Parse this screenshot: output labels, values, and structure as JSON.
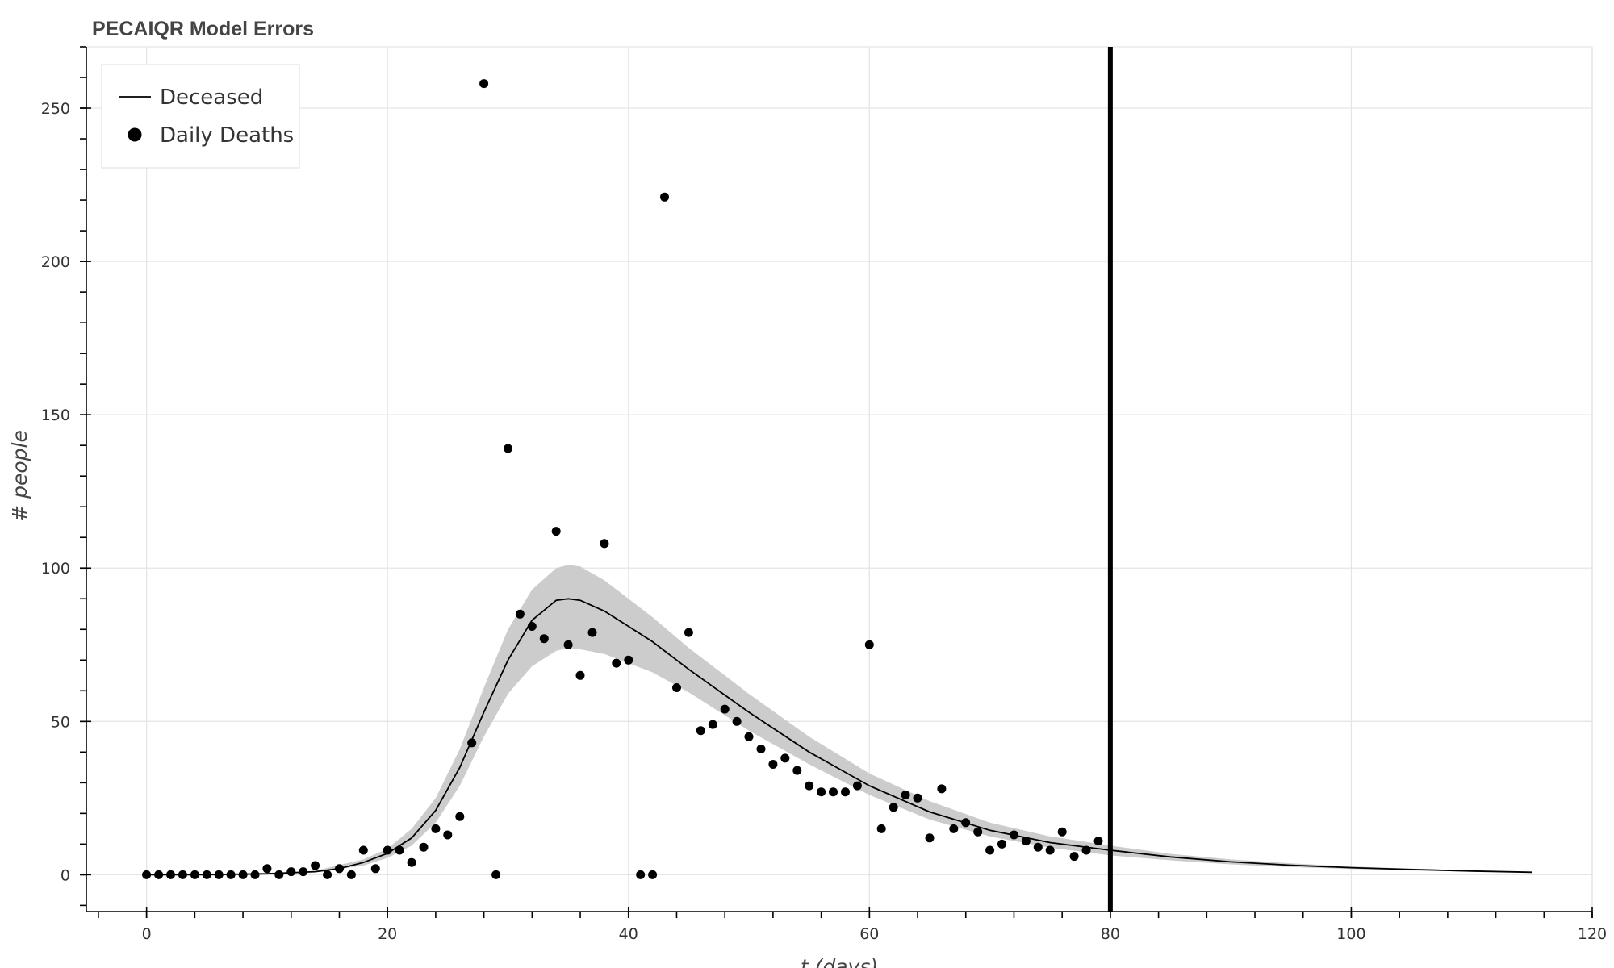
{
  "chart_data": {
    "type": "line",
    "title": "PECAIQR Model Errors",
    "xlabel": "t (days)",
    "ylabel": "# people",
    "xlim": [
      -5,
      120
    ],
    "ylim": [
      -12,
      270
    ],
    "x_ticks": [
      0,
      20,
      40,
      60,
      80,
      100,
      120
    ],
    "y_ticks": [
      0,
      50,
      100,
      150,
      200,
      250
    ],
    "grid": true,
    "legend": {
      "placement": "top-left",
      "entries": [
        {
          "label": "Deceased",
          "marker": "line"
        },
        {
          "label": "Daily Deaths",
          "marker": "circle"
        }
      ]
    },
    "vertical_line": {
      "x": 80,
      "color": "#000000"
    },
    "band_color": "#cccccc",
    "line_color": "#000000",
    "series": [
      {
        "name": "Deceased",
        "kind": "line",
        "x": [
          0,
          5,
          10,
          14,
          16,
          18,
          20,
          22,
          24,
          26,
          27,
          28,
          30,
          32,
          34,
          35,
          36,
          38,
          40,
          42,
          45,
          50,
          55,
          60,
          65,
          70,
          75,
          80,
          85,
          90,
          95,
          100,
          105,
          110,
          115
        ],
        "y": [
          0,
          0,
          0.3,
          1,
          2,
          4,
          7,
          12,
          21,
          35,
          44,
          53,
          70,
          83,
          89.5,
          90,
          89.5,
          86,
          81,
          76,
          67,
          53,
          40,
          29,
          20.5,
          14.5,
          10.5,
          8,
          5.8,
          4.2,
          3.1,
          2.3,
          1.7,
          1.2,
          0.8
        ]
      },
      {
        "name": "Deceased band",
        "kind": "band",
        "x": [
          0,
          10,
          14,
          18,
          20,
          22,
          24,
          26,
          28,
          30,
          32,
          34,
          35,
          36,
          38,
          40,
          42,
          45,
          50,
          55,
          60,
          65,
          70,
          75,
          80,
          85,
          90,
          95,
          100,
          105,
          110,
          115
        ],
        "upper": [
          0,
          0.4,
          1.3,
          5,
          8.5,
          15,
          25,
          41,
          61,
          80,
          93,
          100,
          101,
          100.5,
          96,
          90,
          84,
          74,
          59,
          45,
          33,
          24,
          17,
          12.5,
          9.5,
          6.8,
          5,
          3.7,
          2.7,
          2,
          1.4,
          0.9
        ],
        "lower": [
          0,
          0.2,
          0.8,
          3,
          5.5,
          9.5,
          17,
          29,
          45,
          59,
          68,
          73,
          74,
          73.5,
          72,
          69,
          66,
          59.5,
          47,
          36,
          26,
          18,
          12.5,
          8.8,
          6.3,
          4.7,
          3.4,
          2.5,
          1.9,
          1.4,
          1,
          0.7
        ]
      },
      {
        "name": "Daily Deaths",
        "kind": "scatter",
        "x": [
          0,
          1,
          2,
          3,
          4,
          5,
          6,
          7,
          8,
          9,
          10,
          11,
          12,
          13,
          14,
          15,
          16,
          17,
          18,
          19,
          20,
          21,
          22,
          23,
          24,
          25,
          26,
          27,
          28,
          29,
          30,
          31,
          32,
          33,
          34,
          35,
          36,
          37,
          38,
          39,
          40,
          41,
          42,
          43,
          44,
          45,
          46,
          47,
          48,
          49,
          50,
          51,
          52,
          53,
          54,
          55,
          56,
          57,
          58,
          59,
          60,
          61,
          62,
          63,
          64,
          65,
          66,
          67,
          68,
          69,
          70,
          71,
          72,
          73,
          74,
          75,
          76,
          77,
          78,
          79
        ],
        "y": [
          0,
          0,
          0,
          0,
          0,
          0,
          0,
          0,
          0,
          0,
          2,
          0,
          1,
          1,
          3,
          0,
          2,
          0,
          8,
          2,
          8,
          8,
          4,
          9,
          15,
          13,
          19,
          43,
          258,
          0,
          139,
          85,
          81,
          77,
          112,
          75,
          65,
          79,
          108,
          69,
          70,
          0,
          0,
          221,
          61,
          79,
          47,
          49,
          54,
          50,
          45,
          41,
          36,
          38,
          34,
          29,
          27,
          27,
          27,
          29,
          75,
          15,
          22,
          26,
          25,
          12,
          28,
          15,
          17,
          14,
          8,
          10,
          13,
          11,
          9,
          8,
          14,
          6,
          8,
          11
        ]
      }
    ]
  }
}
